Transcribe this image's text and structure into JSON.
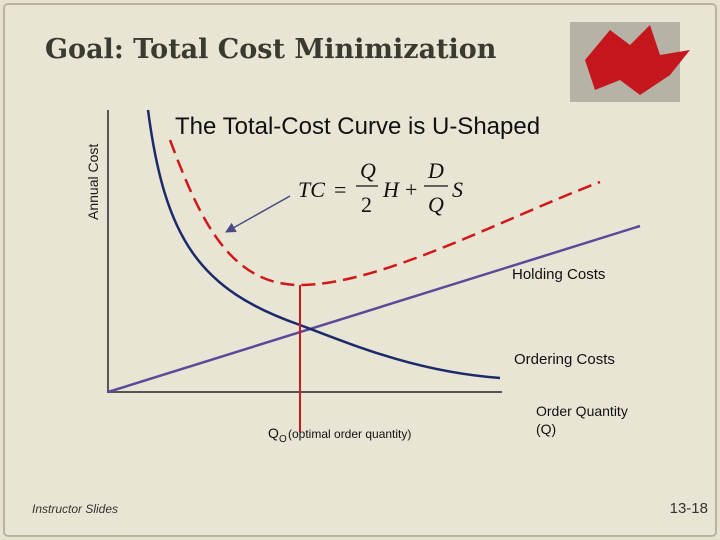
{
  "slide": {
    "title": "Goal: Total Cost Minimization",
    "y_axis_label": "Annual Cost",
    "heading": "The Total-Cost Curve is U-Shaped",
    "formula": {
      "lhs": "TC",
      "equals": "=",
      "num1": "Q",
      "den1": "2",
      "var1": "H",
      "plus": "+",
      "num2": "D",
      "den2": "Q",
      "var2": "S"
    },
    "labels": {
      "holding": "Holding Costs",
      "ordering": "Ordering Costs",
      "q": "Q",
      "q_sub": "O",
      "optimal": "(optimal order quantity)",
      "x_axis_line1": "Order Quantity",
      "x_axis_line2": "(Q)"
    },
    "footer": {
      "left": "Instructor Slides",
      "right": "13-18"
    }
  }
}
